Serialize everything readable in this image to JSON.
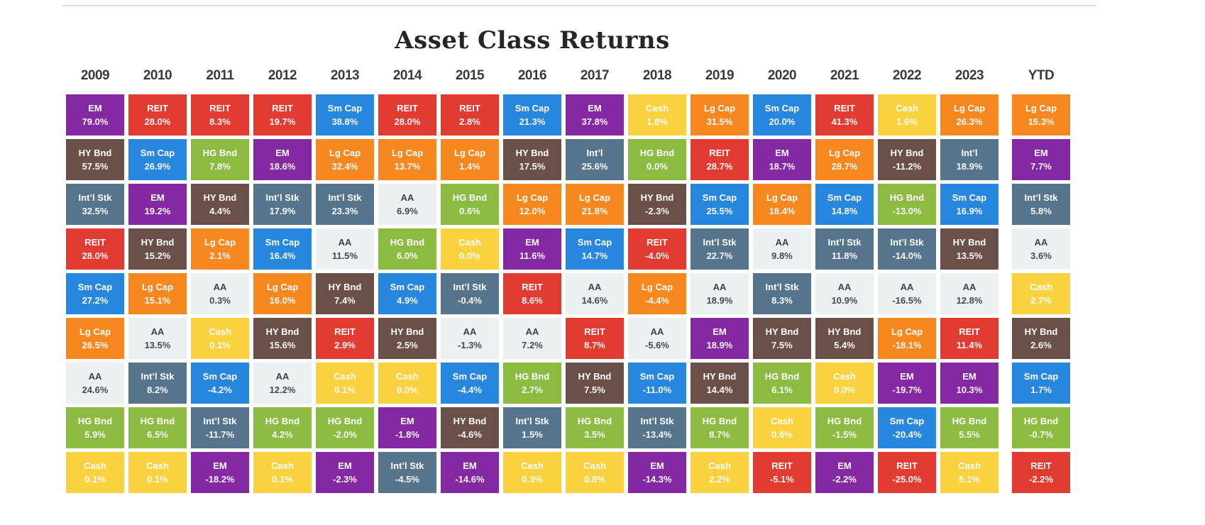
{
  "title": "Asset Class Returns",
  "chart_data": {
    "type": "table",
    "title": "Asset Class Returns",
    "columns": [
      "2009",
      "2010",
      "2011",
      "2012",
      "2013",
      "2014",
      "2015",
      "2016",
      "2017",
      "2018",
      "2019",
      "2020",
      "2021",
      "2022",
      "2023",
      "YTD"
    ],
    "asset_colors": {
      "Lg Cap": "#F6881F",
      "Sm Cap": "#2787DE",
      "Int’l Stk": "#56748B",
      "Int’l": "#56748B",
      "EM": "#8528A4",
      "REIT": "#E23B32",
      "HG Bnd": "#8CBB42",
      "HY Bnd": "#6B5049",
      "Cash": "#FAD240",
      "AA": "#EDF0F1"
    },
    "aa_text_color": "#39434B",
    "header_text_color": "#3a3a3a",
    "rankings": [
      {
        "year": "2009",
        "cells": [
          [
            "EM",
            "79.0%"
          ],
          [
            "HY Bnd",
            "57.5%"
          ],
          [
            "Int’l Stk",
            "32.5%"
          ],
          [
            "REIT",
            "28.0%"
          ],
          [
            "Sm Cap",
            "27.2%"
          ],
          [
            "Lg Cap",
            "26.5%"
          ],
          [
            "AA",
            "24.6%"
          ],
          [
            "HG Bnd",
            "5.9%"
          ],
          [
            "Cash",
            "0.1%"
          ]
        ]
      },
      {
        "year": "2010",
        "cells": [
          [
            "REIT",
            "28.0%"
          ],
          [
            "Sm Cap",
            "26.9%"
          ],
          [
            "EM",
            "19.2%"
          ],
          [
            "HY Bnd",
            "15.2%"
          ],
          [
            "Lg Cap",
            "15.1%"
          ],
          [
            "AA",
            "13.5%"
          ],
          [
            "Int’l Stk",
            "8.2%"
          ],
          [
            "HG Bnd",
            "6.5%"
          ],
          [
            "Cash",
            "0.1%"
          ]
        ]
      },
      {
        "year": "2011",
        "cells": [
          [
            "REIT",
            "8.3%"
          ],
          [
            "HG Bnd",
            "7.8%"
          ],
          [
            "HY Bnd",
            "4.4%"
          ],
          [
            "Lg Cap",
            "2.1%"
          ],
          [
            "AA",
            "0.3%"
          ],
          [
            "Cash",
            "0.1%"
          ],
          [
            "Sm Cap",
            "-4.2%"
          ],
          [
            "Int’l Stk",
            "-11.7%"
          ],
          [
            "EM",
            "-18.2%"
          ]
        ]
      },
      {
        "year": "2012",
        "cells": [
          [
            "REIT",
            "19.7%"
          ],
          [
            "EM",
            "18.6%"
          ],
          [
            "Int’l Stk",
            "17.9%"
          ],
          [
            "Sm Cap",
            "16.4%"
          ],
          [
            "Lg Cap",
            "16.0%"
          ],
          [
            "HY Bnd",
            "15.6%"
          ],
          [
            "AA",
            "12.2%"
          ],
          [
            "HG Bnd",
            "4.2%"
          ],
          [
            "Cash",
            "0.1%"
          ]
        ]
      },
      {
        "year": "2013",
        "cells": [
          [
            "Sm Cap",
            "38.8%"
          ],
          [
            "Lg Cap",
            "32.4%"
          ],
          [
            "Int’l Stk",
            "23.3%"
          ],
          [
            "AA",
            "11.5%"
          ],
          [
            "HY Bnd",
            "7.4%"
          ],
          [
            "REIT",
            "2.9%"
          ],
          [
            "Cash",
            "0.1%"
          ],
          [
            "HG Bnd",
            "-2.0%"
          ],
          [
            "EM",
            "-2.3%"
          ]
        ]
      },
      {
        "year": "2014",
        "cells": [
          [
            "REIT",
            "28.0%"
          ],
          [
            "Lg Cap",
            "13.7%"
          ],
          [
            "AA",
            "6.9%"
          ],
          [
            "HG Bnd",
            "6.0%"
          ],
          [
            "Sm Cap",
            "4.9%"
          ],
          [
            "HY Bnd",
            "2.5%"
          ],
          [
            "Cash",
            "0.0%"
          ],
          [
            "EM",
            "-1.8%"
          ],
          [
            "Int’l Stk",
            "-4.5%"
          ]
        ]
      },
      {
        "year": "2015",
        "cells": [
          [
            "REIT",
            "2.8%"
          ],
          [
            "Lg Cap",
            "1.4%"
          ],
          [
            "HG Bnd",
            "0.6%"
          ],
          [
            "Cash",
            "0.0%"
          ],
          [
            "Int’l Stk",
            "-0.4%"
          ],
          [
            "AA",
            "-1.3%"
          ],
          [
            "Sm Cap",
            "-4.4%"
          ],
          [
            "HY Bnd",
            "-4.6%"
          ],
          [
            "EM",
            "-14.6%"
          ]
        ]
      },
      {
        "year": "2016",
        "cells": [
          [
            "Sm Cap",
            "21.3%"
          ],
          [
            "HY Bnd",
            "17.5%"
          ],
          [
            "Lg Cap",
            "12.0%"
          ],
          [
            "EM",
            "11.6%"
          ],
          [
            "REIT",
            "8.6%"
          ],
          [
            "AA",
            "7.2%"
          ],
          [
            "HG Bnd",
            "2.7%"
          ],
          [
            "Int’l Stk",
            "1.5%"
          ],
          [
            "Cash",
            "0.3%"
          ]
        ]
      },
      {
        "year": "2017",
        "cells": [
          [
            "EM",
            "37.8%"
          ],
          [
            "Int’l",
            "25.6%"
          ],
          [
            "Lg Cap",
            "21.8%"
          ],
          [
            "Sm Cap",
            "14.7%"
          ],
          [
            "AA",
            "14.6%"
          ],
          [
            "REIT",
            "8.7%"
          ],
          [
            "HY Bnd",
            "7.5%"
          ],
          [
            "HG Bnd",
            "3.5%"
          ],
          [
            "Cash",
            "0.8%"
          ]
        ]
      },
      {
        "year": "2018",
        "cells": [
          [
            "Cash",
            "1.8%"
          ],
          [
            "HG Bnd",
            "0.0%"
          ],
          [
            "HY Bnd",
            "-2.3%"
          ],
          [
            "REIT",
            "-4.0%"
          ],
          [
            "Lg Cap",
            "-4.4%"
          ],
          [
            "AA",
            "-5.6%"
          ],
          [
            "Sm Cap",
            "-11.0%"
          ],
          [
            "Int’l Stk",
            "-13.4%"
          ],
          [
            "EM",
            "-14.3%"
          ]
        ]
      },
      {
        "year": "2019",
        "cells": [
          [
            "Lg Cap",
            "31.5%"
          ],
          [
            "REIT",
            "28.7%"
          ],
          [
            "Sm Cap",
            "25.5%"
          ],
          [
            "Int’l Stk",
            "22.7%"
          ],
          [
            "AA",
            "18.9%"
          ],
          [
            "EM",
            "18.9%"
          ],
          [
            "HY Bnd",
            "14.4%"
          ],
          [
            "HG Bnd",
            "8.7%"
          ],
          [
            "Cash",
            "2.2%"
          ]
        ]
      },
      {
        "year": "2020",
        "cells": [
          [
            "Sm Cap",
            "20.0%"
          ],
          [
            "EM",
            "18.7%"
          ],
          [
            "Lg Cap",
            "18.4%"
          ],
          [
            "AA",
            "9.8%"
          ],
          [
            "Int’l Stk",
            "8.3%"
          ],
          [
            "HY Bnd",
            "7.5%"
          ],
          [
            "HG Bnd",
            "6.1%"
          ],
          [
            "Cash",
            "0.6%"
          ],
          [
            "REIT",
            "-5.1%"
          ]
        ]
      },
      {
        "year": "2021",
        "cells": [
          [
            "REIT",
            "41.3%"
          ],
          [
            "Lg Cap",
            "28.7%"
          ],
          [
            "Sm Cap",
            "14.8%"
          ],
          [
            "Int’l Stk",
            "11.8%"
          ],
          [
            "AA",
            "10.9%"
          ],
          [
            "HY Bnd",
            "5.4%"
          ],
          [
            "Cash",
            "0.0%"
          ],
          [
            "HG Bnd",
            "-1.5%"
          ],
          [
            "EM",
            "-2.2%"
          ]
        ]
      },
      {
        "year": "2022",
        "cells": [
          [
            "Cash",
            "1.6%"
          ],
          [
            "HY Bnd",
            "-11.2%"
          ],
          [
            "HG Bnd",
            "-13.0%"
          ],
          [
            "Int’l Stk",
            "-14.0%"
          ],
          [
            "AA",
            "-16.5%"
          ],
          [
            "Lg Cap",
            "-18.1%"
          ],
          [
            "EM",
            "-19.7%"
          ],
          [
            "Sm Cap",
            "-20.4%"
          ],
          [
            "REIT",
            "-25.0%"
          ]
        ]
      },
      {
        "year": "2023",
        "cells": [
          [
            "Lg Cap",
            "26.3%"
          ],
          [
            "Int’l",
            "18.9%"
          ],
          [
            "Sm Cap",
            "16.9%"
          ],
          [
            "HY Bnd",
            "13.5%"
          ],
          [
            "AA",
            "12.8%"
          ],
          [
            "REIT",
            "11.4%"
          ],
          [
            "EM",
            "10.3%"
          ],
          [
            "HG Bnd",
            "5.5%"
          ],
          [
            "Cash",
            "5.1%"
          ]
        ]
      },
      {
        "year": "YTD",
        "cells": [
          [
            "Lg Cap",
            "15.3%"
          ],
          [
            "EM",
            "7.7%"
          ],
          [
            "Int’l Stk",
            "5.8%"
          ],
          [
            "AA",
            "3.6%"
          ],
          [
            "Cash",
            "2.7%"
          ],
          [
            "HY Bnd",
            "2.6%"
          ],
          [
            "Sm Cap",
            "1.7%"
          ],
          [
            "HG Bnd",
            "-0.7%"
          ],
          [
            "REIT",
            "-2.2%"
          ]
        ]
      }
    ]
  }
}
